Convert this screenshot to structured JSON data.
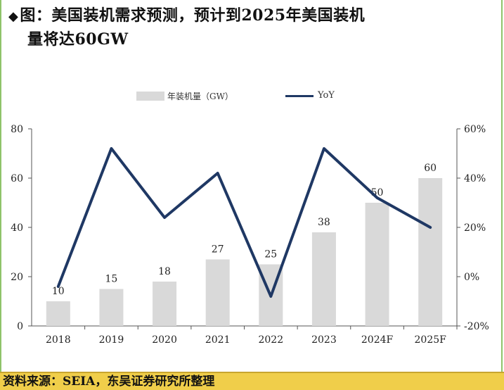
{
  "title": {
    "marker": "◆",
    "line1": "图：美国装机需求预测，预计到2025年美国装机",
    "line2": "量将达60GW"
  },
  "legend": {
    "bar_label": "年装机量（GW）",
    "line_label": "YoY"
  },
  "footer": {
    "source": "资料来源：SEIA，东吴证券研究所整理"
  },
  "colors": {
    "bar": "#d9d9d9",
    "line": "#1f3864",
    "footer_bg": "#f0ce4a",
    "frame": "#8fc36a"
  },
  "chart_data": {
    "type": "bar",
    "categories": [
      "2018",
      "2019",
      "2020",
      "2021",
      "2022",
      "2023",
      "2024F",
      "2025F"
    ],
    "series": [
      {
        "name": "年装机量（GW）",
        "type": "bar",
        "axis": "left",
        "values": [
          10,
          15,
          18,
          27,
          25,
          38,
          50,
          60
        ]
      },
      {
        "name": "YoY",
        "type": "line",
        "axis": "right",
        "values": [
          -4,
          52,
          24,
          42,
          -8,
          52,
          32,
          20
        ]
      }
    ],
    "data_labels": [
      "10",
      "15",
      "18",
      "27",
      "25",
      "38",
      "50",
      "60"
    ],
    "y_left": {
      "min": 0,
      "max": 80,
      "ticks": [
        "0",
        "20",
        "40",
        "60",
        "80"
      ]
    },
    "y_right": {
      "min": -20,
      "max": 60,
      "ticks": [
        "-20%",
        "0%",
        "20%",
        "40%",
        "60%"
      ]
    },
    "grid": false,
    "legend_position": "top"
  }
}
